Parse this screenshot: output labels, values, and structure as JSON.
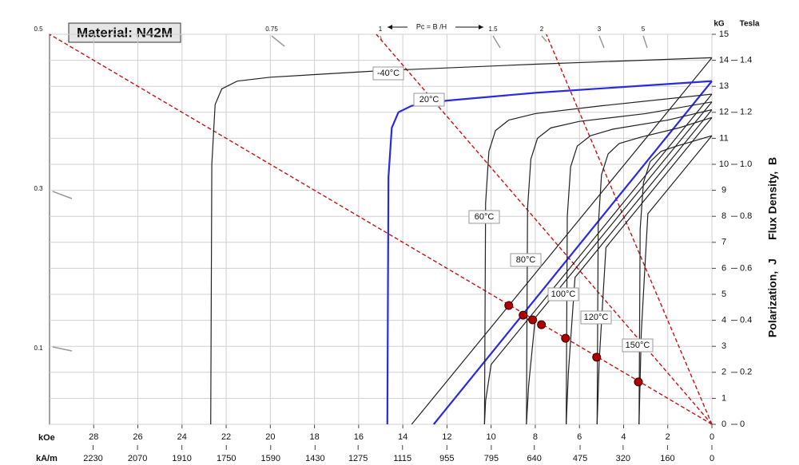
{
  "chart_data": {
    "type": "line",
    "title": "Material: N42M",
    "xlabel": "kOe",
    "x2label": "kA/m",
    "ylabel": "kG",
    "y2label": "Tesla",
    "ylabel_side": "Polarization,  J      Flux Density,  B",
    "pc_title": "Pc = B /H",
    "pc_labels": [
      "0.5",
      "0.3",
      "0.1",
      "0.75",
      "1",
      "1.5",
      "2",
      "3",
      "5"
    ],
    "xlim": [
      30,
      0
    ],
    "ylim": [
      0,
      15
    ],
    "xticks": [
      28,
      26,
      24,
      22,
      20,
      18,
      16,
      14,
      12,
      10,
      8,
      6,
      4,
      2,
      0
    ],
    "yticks": [
      0,
      1,
      2,
      3,
      4,
      5,
      6,
      7,
      8,
      9,
      10,
      11,
      12,
      13,
      14,
      15
    ],
    "x2lim": [
      2387,
      0
    ],
    "x2ticks": [
      2230,
      2070,
      1910,
      1750,
      1590,
      1430,
      1275,
      1115,
      955,
      795,
      640,
      475,
      320,
      160,
      0
    ],
    "y2lim": [
      0,
      1.5
    ],
    "y2ticks": [
      0,
      0.2,
      0.4,
      0.6,
      0.8,
      {
        "value": 1.0,
        "label": "1.0"
      },
      1.2,
      1.4
    ],
    "grid": true,
    "series": [
      {
        "name": "-40°C",
        "color": "#222222",
        "x": [
          22.7,
          22.65,
          22.5,
          22.2,
          21.5,
          20,
          15,
          8,
          0
        ],
        "values": [
          0,
          10,
          12.3,
          12.9,
          13.2,
          13.35,
          13.6,
          13.85,
          14.1
        ],
        "b_x": [
          0,
          13.6
        ],
        "b_values": [
          14.1,
          0
        ]
      },
      {
        "name": "20°C",
        "color": "#2a2ae0",
        "x": [
          14.7,
          14.65,
          14.5,
          14.2,
          13.6,
          12,
          8,
          0
        ],
        "values": [
          0,
          9.5,
          11.4,
          12,
          12.25,
          12.45,
          12.75,
          13.2
        ],
        "b_x": [
          0,
          12.6
        ],
        "b_values": [
          13.2,
          0
        ]
      },
      {
        "name": "60°C",
        "color": "#222222",
        "x": [
          10.3,
          10.25,
          10.1,
          9.8,
          9.2,
          8,
          5,
          0
        ],
        "values": [
          0,
          8.5,
          10.5,
          11.3,
          11.7,
          11.95,
          12.25,
          12.7
        ],
        "b_x": [
          0,
          10.0,
          10.25,
          10.3
        ],
        "b_values": [
          12.7,
          2.3,
          0.9,
          0
        ]
      },
      {
        "name": "80°C",
        "color": "#222222",
        "x": [
          8.4,
          8.35,
          8.2,
          7.9,
          7.3,
          6,
          3,
          0
        ],
        "values": [
          0,
          8.3,
          10.2,
          11,
          11.4,
          11.65,
          11.95,
          12.4
        ],
        "b_x": [
          0,
          8.0,
          8.3,
          8.4
        ],
        "b_values": [
          12.4,
          4.1,
          1.5,
          0
        ]
      },
      {
        "name": "100°C",
        "color": "#222222",
        "x": [
          6.6,
          6.55,
          6.4,
          6.1,
          5.5,
          4.5,
          2,
          0
        ],
        "values": [
          0,
          8,
          9.9,
          10.7,
          11.1,
          11.35,
          11.7,
          12.1
        ],
        "b_x": [
          0,
          6.2,
          6.5,
          6.6
        ],
        "b_values": [
          12.1,
          5.65,
          2,
          0
        ]
      },
      {
        "name": "120°C",
        "color": "#222222",
        "x": [
          5.2,
          5.15,
          5.0,
          4.7,
          4.2,
          3.2,
          1.5,
          0
        ],
        "values": [
          0,
          7.6,
          9.6,
          10.4,
          10.8,
          11.05,
          11.4,
          11.8
        ],
        "b_x": [
          0,
          4.8,
          5.1,
          5.2
        ],
        "b_values": [
          11.8,
          6.8,
          2.5,
          0
        ]
      },
      {
        "name": "150°C",
        "color": "#222222",
        "x": [
          3.3,
          3.25,
          3.1,
          2.8,
          2.3,
          1.6,
          0.8,
          0
        ],
        "values": [
          0,
          7.5,
          9.3,
          10.1,
          10.5,
          10.7,
          10.9,
          11.1
        ],
        "b_x": [
          0,
          2.9,
          3.2,
          3.3
        ],
        "b_values": [
          11.1,
          8.1,
          3.5,
          0
        ]
      }
    ],
    "load_lines": [
      {
        "x": [
          0,
          30
        ],
        "values": [
          0,
          15
        ]
      },
      {
        "x": [
          0,
          15.2
        ],
        "values": [
          0,
          15
        ]
      },
      {
        "x": [
          0,
          7.5
        ],
        "values": [
          0,
          15
        ]
      }
    ],
    "load_line_color": "#cc1111",
    "points": {
      "color": "#b00000",
      "x": [
        9.2,
        8.55,
        8.12,
        7.72,
        6.63,
        5.22,
        3.33
      ],
      "values": [
        4.57,
        4.2,
        4.02,
        3.83,
        3.31,
        2.58,
        1.63
      ]
    }
  }
}
